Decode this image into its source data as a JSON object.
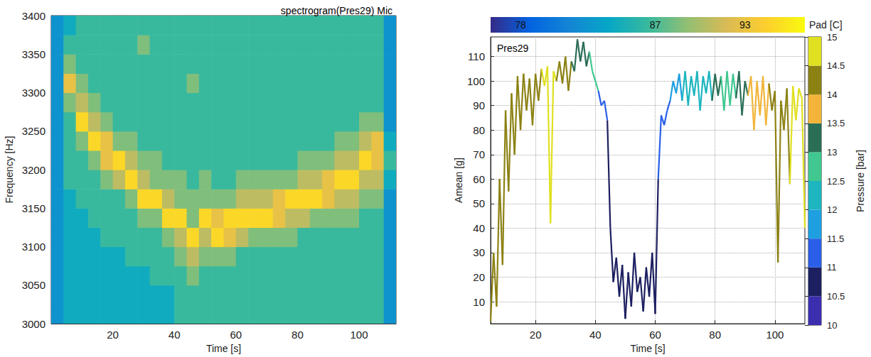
{
  "chart_data": [
    {
      "type": "heatmap",
      "title": "spectrogram(Pres29) Mic",
      "x_label": "Time [s]",
      "y_label": "Frequency [Hz]",
      "xlim": [
        0,
        112
      ],
      "xticks": [
        20,
        40,
        60,
        80,
        100
      ],
      "ylim": [
        3000,
        3400
      ],
      "yticks": [
        3000,
        3050,
        3100,
        3150,
        3200,
        3250,
        3300,
        3350,
        3400
      ],
      "time_edges": [
        0,
        4,
        8,
        12,
        16,
        20,
        24,
        28,
        32,
        36,
        40,
        44,
        48,
        52,
        56,
        60,
        64,
        68,
        72,
        76,
        80,
        84,
        88,
        92,
        96,
        100,
        104,
        108,
        112
      ],
      "frequency_edges": [
        3000,
        3025,
        3050,
        3075,
        3100,
        3125,
        3150,
        3175,
        3200,
        3225,
        3250,
        3275,
        3300,
        3325,
        3350,
        3375,
        3400
      ],
      "cells": [
        [
          3,
          3,
          3,
          3,
          3,
          3,
          3,
          3,
          3,
          3,
          3,
          3,
          3,
          3,
          3,
          3
        ],
        [
          4,
          4,
          4,
          4,
          4,
          4,
          4,
          5,
          5,
          5,
          5,
          6,
          8,
          6,
          5,
          4
        ],
        [
          4,
          4,
          4,
          4,
          4,
          4,
          5,
          5,
          5,
          6,
          9,
          7,
          6,
          5,
          5,
          5
        ],
        [
          4,
          4,
          4,
          4,
          4,
          5,
          5,
          5,
          6,
          9,
          7,
          6,
          5,
          5,
          5,
          5
        ],
        [
          4,
          4,
          4,
          4,
          5,
          5,
          5,
          6,
          8,
          8,
          6,
          5,
          5,
          5,
          5,
          5
        ],
        [
          4,
          4,
          4,
          4,
          5,
          5,
          5,
          7,
          9,
          6,
          5,
          5,
          5,
          5,
          5,
          5
        ],
        [
          4,
          4,
          4,
          5,
          5,
          5,
          6,
          9,
          7,
          6,
          5,
          5,
          5,
          5,
          5,
          5
        ],
        [
          4,
          4,
          4,
          5,
          5,
          6,
          9,
          7,
          6,
          5,
          5,
          5,
          5,
          5,
          6,
          5
        ],
        [
          4,
          4,
          5,
          5,
          5,
          6,
          9,
          6,
          6,
          5,
          5,
          5,
          5,
          5,
          5,
          5
        ],
        [
          4,
          4,
          5,
          5,
          6,
          9,
          7,
          6,
          5,
          5,
          5,
          5,
          5,
          5,
          5,
          5
        ],
        [
          5,
          5,
          5,
          6,
          7,
          9,
          6,
          6,
          5,
          5,
          5,
          5,
          5,
          5,
          5,
          5
        ],
        [
          5,
          5,
          6,
          7,
          9,
          6,
          6,
          5,
          5,
          5,
          5,
          5,
          6,
          5,
          5,
          5
        ],
        [
          5,
          5,
          5,
          6,
          7,
          9,
          6,
          6,
          5,
          5,
          5,
          5,
          5,
          5,
          5,
          5
        ],
        [
          5,
          5,
          5,
          6,
          9,
          8,
          6,
          5,
          5,
          5,
          5,
          5,
          5,
          5,
          5,
          5
        ],
        [
          5,
          5,
          5,
          6,
          8,
          9,
          6,
          5,
          5,
          5,
          5,
          5,
          5,
          5,
          5,
          5
        ],
        [
          5,
          5,
          5,
          5,
          7,
          9,
          7,
          6,
          5,
          5,
          5,
          5,
          5,
          5,
          5,
          5
        ],
        [
          5,
          5,
          5,
          5,
          6,
          9,
          7,
          6,
          5,
          5,
          5,
          5,
          5,
          5,
          5,
          5
        ],
        [
          5,
          5,
          5,
          5,
          6,
          9,
          7,
          6,
          5,
          5,
          5,
          5,
          5,
          5,
          5,
          5
        ],
        [
          5,
          5,
          5,
          5,
          6,
          8,
          8,
          6,
          5,
          5,
          5,
          5,
          5,
          5,
          5,
          5
        ],
        [
          5,
          5,
          5,
          5,
          6,
          7,
          9,
          6,
          5,
          5,
          5,
          5,
          5,
          5,
          5,
          5
        ],
        [
          5,
          5,
          5,
          5,
          5,
          7,
          9,
          7,
          6,
          5,
          5,
          5,
          5,
          5,
          5,
          5
        ],
        [
          5,
          5,
          5,
          5,
          5,
          6,
          9,
          7,
          6,
          5,
          5,
          5,
          5,
          5,
          5,
          5
        ],
        [
          5,
          5,
          5,
          5,
          5,
          6,
          8,
          8,
          6,
          5,
          5,
          5,
          5,
          5,
          5,
          5
        ],
        [
          5,
          5,
          5,
          5,
          5,
          6,
          7,
          9,
          7,
          6,
          5,
          5,
          5,
          5,
          5,
          5
        ],
        [
          5,
          5,
          5,
          5,
          5,
          6,
          7,
          9,
          7,
          6,
          5,
          5,
          5,
          5,
          5,
          5
        ],
        [
          5,
          5,
          5,
          5,
          5,
          5,
          6,
          7,
          9,
          7,
          6,
          5,
          5,
          5,
          5,
          5
        ],
        [
          5,
          5,
          5,
          5,
          5,
          5,
          6,
          7,
          8,
          8,
          6,
          5,
          5,
          5,
          5,
          5
        ],
        [
          3,
          3,
          3,
          3,
          3,
          3,
          3,
          4,
          5,
          4,
          3,
          3,
          3,
          3,
          3,
          3
        ]
      ],
      "color_scale": {
        "range": [
          0,
          10
        ],
        "colors": [
          "#352a87",
          "#0363e1",
          "#1485d4",
          "#06a7c6",
          "#38b99e",
          "#92bf73",
          "#d9ba56",
          "#fcce2e",
          "#f9fb0e"
        ]
      }
    },
    {
      "type": "line",
      "title": "Pres29",
      "x_label": "Time [s]",
      "y_label": "Amean [g]",
      "xlim": [
        5,
        110
      ],
      "xticks": [
        20,
        40,
        60,
        80,
        100
      ],
      "ylim": [
        1,
        118
      ],
      "yticks": [
        10,
        20,
        30,
        40,
        50,
        60,
        70,
        80,
        90,
        100,
        110
      ],
      "grid": true,
      "x": [
        5,
        6,
        7,
        8,
        9,
        10,
        11,
        12,
        13,
        14,
        15,
        16,
        17,
        18,
        19,
        20,
        21,
        22,
        23,
        24,
        25,
        26,
        27,
        28,
        29,
        30,
        31,
        32,
        33,
        34,
        35,
        36,
        37,
        38,
        39,
        40,
        41,
        42,
        43,
        44,
        45,
        46,
        47,
        48,
        49,
        50,
        51,
        52,
        53,
        54,
        55,
        56,
        57,
        58,
        59,
        60,
        61,
        62,
        63,
        64,
        65,
        66,
        67,
        68,
        69,
        70,
        71,
        72,
        73,
        74,
        75,
        76,
        77,
        78,
        79,
        80,
        81,
        82,
        83,
        84,
        85,
        86,
        87,
        88,
        89,
        90,
        91,
        92,
        93,
        94,
        95,
        96,
        97,
        98,
        99,
        100,
        101,
        102,
        103,
        104,
        105,
        106,
        107,
        108,
        109,
        110
      ],
      "values": [
        2,
        30,
        8,
        60,
        25,
        88,
        55,
        95,
        70,
        102,
        80,
        103,
        88,
        101,
        82,
        103,
        92,
        105,
        98,
        106,
        42,
        104,
        100,
        108,
        99,
        110,
        96,
        108,
        104,
        117,
        108,
        116,
        106,
        112,
        104,
        100,
        96,
        90,
        92,
        84,
        40,
        18,
        28,
        12,
        25,
        3,
        22,
        8,
        30,
        14,
        20,
        6,
        24,
        12,
        30,
        5,
        60,
        86,
        82,
        88,
        92,
        100,
        95,
        103,
        92,
        104,
        90,
        102,
        94,
        104,
        88,
        102,
        95,
        104,
        92,
        103,
        94,
        102,
        88,
        104,
        90,
        103,
        93,
        104,
        86,
        100,
        94,
        102,
        80,
        100,
        86,
        102,
        82,
        99,
        88,
        96,
        26,
        92,
        80,
        97,
        58,
        98,
        84,
        97,
        93,
        40
      ],
      "pressure": [
        14.2,
        14.2,
        14.2,
        14.2,
        14.2,
        14.2,
        14.2,
        14.2,
        14.2,
        14.2,
        14.2,
        14.2,
        14.2,
        14.2,
        14.2,
        14.2,
        14.2,
        14.7,
        14.7,
        14.7,
        14.7,
        14.7,
        14.2,
        14.2,
        14.2,
        14.2,
        14.2,
        13.2,
        13.2,
        13.2,
        13.2,
        13.2,
        13.2,
        12.7,
        12.7,
        12.7,
        11.3,
        11.3,
        11.3,
        10.7,
        10.7,
        10.7,
        10.7,
        10.7,
        10.7,
        10.7,
        10.7,
        10.7,
        10.7,
        10.7,
        10.7,
        10.7,
        10.7,
        10.7,
        10.7,
        10.7,
        11.3,
        11.3,
        11.3,
        11.3,
        11.8,
        11.8,
        11.8,
        11.8,
        12.2,
        12.2,
        12.2,
        12.2,
        12.2,
        12.2,
        12.2,
        12.2,
        12.2,
        12.2,
        13.2,
        13.2,
        13.2,
        12.7,
        12.7,
        12.7,
        12.7,
        12.7,
        13.2,
        13.2,
        13.2,
        13.2,
        13.7,
        13.7,
        13.7,
        13.7,
        13.7,
        13.7,
        13.7,
        14.2,
        14.2,
        14.2,
        14.2,
        14.2,
        14.2,
        14.2,
        14.7,
        14.7,
        14.7,
        14.7,
        14.7,
        14.7
      ],
      "pressure_colorbar": {
        "label": "Pressure [bar]",
        "range": [
          10,
          15
        ],
        "ticks": [
          10,
          10.5,
          11,
          11.5,
          12,
          12.5,
          13,
          13.5,
          14,
          14.5,
          15
        ],
        "colors": [
          "#3b2fb0",
          "#1c1f60",
          "#2a5ee8",
          "#1e9fe0",
          "#1cb5c0",
          "#40c890",
          "#2a6e55",
          "#f2b53a",
          "#8c8214",
          "#e0e020"
        ]
      },
      "pad_colorbar": {
        "label": "Pad [C]",
        "range": [
          76,
          97
        ],
        "ticks": [
          78,
          87,
          93
        ],
        "colors": [
          "#352a87",
          "#0363e1",
          "#1485d4",
          "#06a7c6",
          "#38b99e",
          "#92bf73",
          "#d9ba56",
          "#fcce2e",
          "#f9fb0e"
        ]
      }
    }
  ]
}
